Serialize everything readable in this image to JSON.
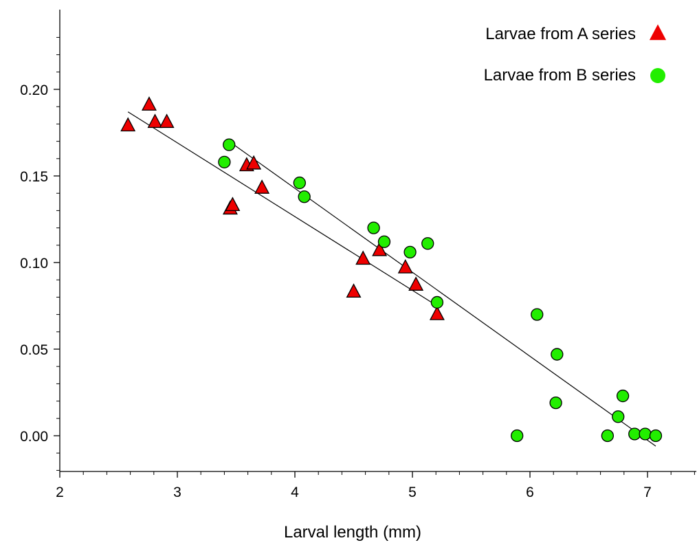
{
  "chart_data": {
    "type": "scatter",
    "title": "",
    "xlabel": "Larval length (mm)",
    "ylabel": "",
    "xlim": [
      2,
      7.4
    ],
    "ylim": [
      -0.02,
      0.235
    ],
    "grid": false,
    "legend_position": "top-right",
    "x_ticks": [
      {
        "value": 2,
        "label": "2"
      },
      {
        "value": 3,
        "label": "3"
      },
      {
        "value": 4,
        "label": "4"
      },
      {
        "value": 5,
        "label": "5"
      },
      {
        "value": 6,
        "label": "6"
      },
      {
        "value": 7,
        "label": "7"
      }
    ],
    "y_ticks": [
      {
        "value": 0.0,
        "label": "0.00"
      },
      {
        "value": 0.05,
        "label": "0.05"
      },
      {
        "value": 0.1,
        "label": "0.10"
      },
      {
        "value": 0.15,
        "label": "0.15"
      },
      {
        "value": 0.2,
        "label": "0.20"
      }
    ],
    "series": [
      {
        "name": "Larvae from A series",
        "marker": "triangle",
        "color": "#ee0000",
        "points": [
          {
            "x": 2.58,
            "y": 0.179
          },
          {
            "x": 2.76,
            "y": 0.191
          },
          {
            "x": 2.81,
            "y": 0.181
          },
          {
            "x": 2.91,
            "y": 0.181
          },
          {
            "x": 3.45,
            "y": 0.131
          },
          {
            "x": 3.47,
            "y": 0.133
          },
          {
            "x": 3.59,
            "y": 0.156
          },
          {
            "x": 3.65,
            "y": 0.157
          },
          {
            "x": 3.72,
            "y": 0.143
          },
          {
            "x": 4.5,
            "y": 0.083
          },
          {
            "x": 4.58,
            "y": 0.102
          },
          {
            "x": 4.72,
            "y": 0.107
          },
          {
            "x": 4.94,
            "y": 0.097
          },
          {
            "x": 5.03,
            "y": 0.087
          },
          {
            "x": 5.21,
            "y": 0.07
          }
        ],
        "fit": {
          "x": [
            2.58,
            5.21
          ],
          "y": [
            0.187,
            0.075
          ]
        }
      },
      {
        "name": "Larvae from B series",
        "marker": "circle",
        "color": "#22ee00",
        "points": [
          {
            "x": 3.4,
            "y": 0.158
          },
          {
            "x": 3.44,
            "y": 0.168
          },
          {
            "x": 4.04,
            "y": 0.146
          },
          {
            "x": 4.08,
            "y": 0.138
          },
          {
            "x": 4.67,
            "y": 0.12
          },
          {
            "x": 4.76,
            "y": 0.112
          },
          {
            "x": 4.98,
            "y": 0.106
          },
          {
            "x": 5.13,
            "y": 0.111
          },
          {
            "x": 5.21,
            "y": 0.077
          },
          {
            "x": 5.89,
            "y": 0.0
          },
          {
            "x": 6.06,
            "y": 0.07
          },
          {
            "x": 6.22,
            "y": 0.019
          },
          {
            "x": 6.23,
            "y": 0.047
          },
          {
            "x": 6.66,
            "y": 0.0
          },
          {
            "x": 6.75,
            "y": 0.011
          },
          {
            "x": 6.79,
            "y": 0.023
          },
          {
            "x": 6.89,
            "y": 0.001
          },
          {
            "x": 6.98,
            "y": 0.001
          },
          {
            "x": 7.07,
            "y": 0.0
          }
        ],
        "fit": {
          "x": [
            3.44,
            7.07
          ],
          "y": [
            0.17,
            -0.006
          ]
        }
      }
    ]
  }
}
